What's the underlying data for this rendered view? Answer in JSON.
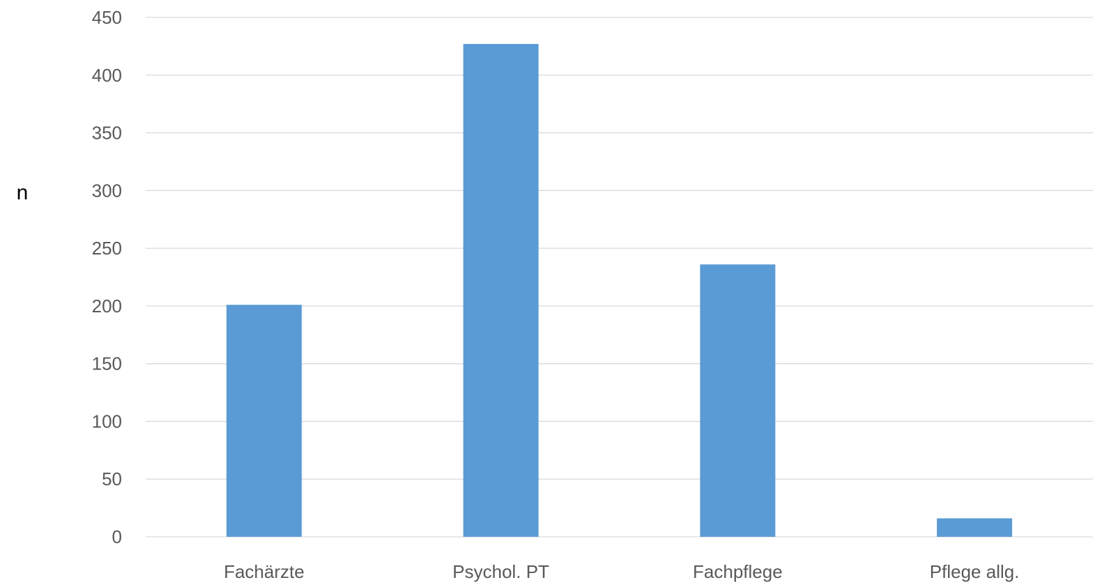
{
  "chart_data": {
    "type": "bar",
    "title": "",
    "xlabel": "",
    "ylabel": "n",
    "categories": [
      "Fachärzte",
      "Psychol. PT",
      "Fachpflege",
      "Pflege allg."
    ],
    "series": [
      {
        "values": [
          201,
          427,
          236,
          16
        ],
        "color": "#5B9BD5"
      }
    ],
    "ylim": [
      0,
      450
    ],
    "yticks": [
      "0",
      "50",
      "100",
      "150",
      "200",
      "250",
      "300",
      "350",
      "400",
      "450"
    ],
    "grid": true,
    "legend": "none",
    "colors": {
      "bar": "#5B9BD5",
      "grid": "#D9D9D9",
      "tick_text": "#595959",
      "axis_label_text": "#000000"
    }
  }
}
